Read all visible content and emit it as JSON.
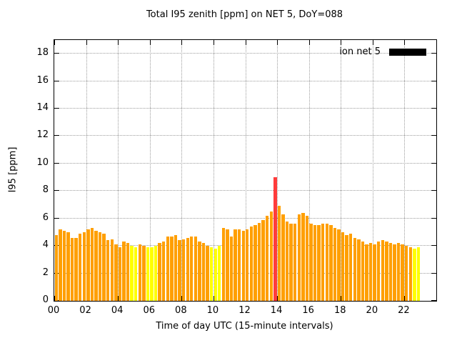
{
  "chart_data": {
    "type": "bar",
    "title": "Total I95 zenith [ppm] on NET 5, DoY=088",
    "xlabel": "Time of day UTC (15-minute intervals)",
    "ylabel": "I95 [ppm]",
    "legend_label": "ion net 5",
    "legend_color": "#000000",
    "xlim": [
      0,
      24
    ],
    "ylim": [
      0,
      19
    ],
    "xtick_values": [
      0,
      2,
      4,
      6,
      8,
      10,
      12,
      14,
      16,
      18,
      20,
      22
    ],
    "xtick_labels": [
      "00",
      "02",
      "04",
      "06",
      "08",
      "10",
      "12",
      "14",
      "16",
      "18",
      "20",
      "22"
    ],
    "yticks": [
      0,
      2,
      4,
      6,
      8,
      10,
      12,
      14,
      16,
      18
    ],
    "grid": true,
    "legend_position": "top-right",
    "start_hour": 0,
    "interval_hours": 0.25,
    "values": [
      4.8,
      5.2,
      5.1,
      5.0,
      4.6,
      4.6,
      4.9,
      5.0,
      5.2,
      5.3,
      5.1,
      5.0,
      4.9,
      4.4,
      4.5,
      4.1,
      3.9,
      4.3,
      4.2,
      4.0,
      3.9,
      4.1,
      4.0,
      3.9,
      3.9,
      4.0,
      4.2,
      4.3,
      4.7,
      4.7,
      4.8,
      4.4,
      4.5,
      4.6,
      4.7,
      4.7,
      4.3,
      4.2,
      4.0,
      3.9,
      3.8,
      4.0,
      5.3,
      5.2,
      4.7,
      5.2,
      5.2,
      5.1,
      5.2,
      5.4,
      5.5,
      5.7,
      5.9,
      6.2,
      6.5,
      9.0,
      6.9,
      6.3,
      5.8,
      5.6,
      5.6,
      6.3,
      6.4,
      6.2,
      5.6,
      5.5,
      5.5,
      5.6,
      5.6,
      5.5,
      5.3,
      5.2,
      5.0,
      4.8,
      4.9,
      4.6,
      4.5,
      4.3,
      4.1,
      4.2,
      4.1,
      4.3,
      4.4,
      4.3,
      4.2,
      4.1,
      4.2,
      4.1,
      4.0,
      3.9,
      3.8,
      3.9
    ],
    "bar_color_codes": "oooooooooooooooooooyyooyyyoooooooooooooyyyooooooooooooorooooooooooooooooooooooooooooooooooyyy",
    "color_map": {
      "o": "#ff9f00",
      "y": "#ffff00",
      "r": "#ff3b3b"
    }
  }
}
